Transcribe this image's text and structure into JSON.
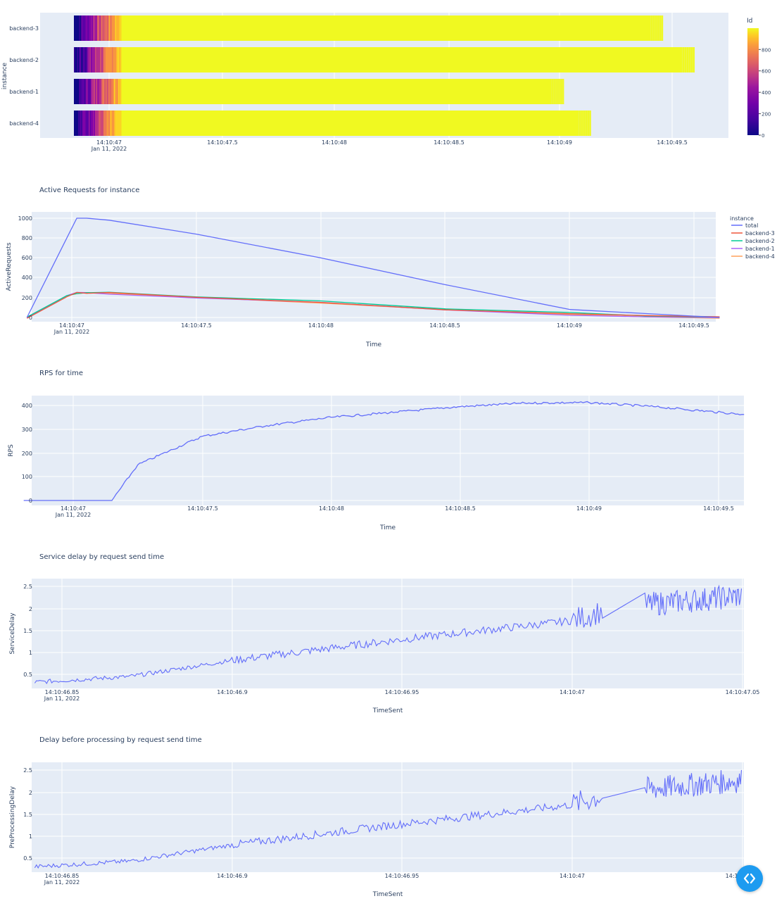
{
  "charts": {
    "timeline": {
      "ylabel": "instance",
      "rows": [
        "backend-3",
        "backend-2",
        "backend-1",
        "backend-4"
      ],
      "bar_start": "14:10:46.84",
      "bar_ends": [
        49.46,
        49.6,
        49.02,
        49.14
      ],
      "x_ticks": [
        {
          "label": "14:10:47",
          "sub": "Jan 11, 2022"
        },
        {
          "label": "14:10:47.5",
          "sub": ""
        },
        {
          "label": "14:10:48",
          "sub": ""
        },
        {
          "label": "14:10:48.5",
          "sub": ""
        },
        {
          "label": "14:10:49",
          "sub": ""
        },
        {
          "label": "14:10:49.5",
          "sub": ""
        }
      ],
      "colorbar": {
        "title": "Id",
        "ticks": [
          "0",
          "200",
          "400",
          "600",
          "800"
        ],
        "range": [
          0,
          999
        ]
      }
    },
    "active": {
      "title": "Active Requests for instance",
      "xlabel": "Time",
      "ylabel": "ActiveRequests",
      "y_ticks": [
        "0",
        "200",
        "400",
        "600",
        "800",
        "1000"
      ],
      "x_ticks": [
        {
          "label": "14:10:47",
          "sub": "Jan 11, 2022"
        },
        {
          "label": "14:10:47.5",
          "sub": ""
        },
        {
          "label": "14:10:48",
          "sub": ""
        },
        {
          "label": "14:10:48.5",
          "sub": ""
        },
        {
          "label": "14:10:49",
          "sub": ""
        },
        {
          "label": "14:10:49.5",
          "sub": ""
        }
      ],
      "legend": {
        "title": "instance",
        "items": [
          {
            "name": "total",
            "color": "#636efa"
          },
          {
            "name": "backend-3",
            "color": "#ef553b"
          },
          {
            "name": "backend-2",
            "color": "#00cc96"
          },
          {
            "name": "backend-1",
            "color": "#ab63fa"
          },
          {
            "name": "backend-4",
            "color": "#ffa15a"
          }
        ]
      }
    },
    "rps": {
      "title": "RPS for time",
      "xlabel": "Time",
      "ylabel": "RPS",
      "y_ticks": [
        "0",
        "100",
        "200",
        "300",
        "400"
      ],
      "x_ticks": [
        {
          "label": "14:10:47",
          "sub": "Jan 11, 2022"
        },
        {
          "label": "14:10:47.5",
          "sub": ""
        },
        {
          "label": "14:10:48",
          "sub": ""
        },
        {
          "label": "14:10:48.5",
          "sub": ""
        },
        {
          "label": "14:10:49",
          "sub": ""
        },
        {
          "label": "14:10:49.5",
          "sub": ""
        }
      ]
    },
    "service": {
      "title": "Service delay by request send time",
      "xlabel": "TimeSent",
      "ylabel": "ServiceDelay",
      "y_ticks": [
        "0.5",
        "1",
        "1.5",
        "2",
        "2.5"
      ],
      "x_ticks": [
        {
          "label": "14:10:46.85",
          "sub": "Jan 11, 2022"
        },
        {
          "label": "14:10:46.9",
          "sub": ""
        },
        {
          "label": "14:10:46.95",
          "sub": ""
        },
        {
          "label": "14:10:47",
          "sub": ""
        },
        {
          "label": "14:10:47.05",
          "sub": ""
        }
      ]
    },
    "preproc": {
      "title": "Delay before processing by request send time",
      "xlabel": "TimeSent",
      "ylabel": "PreProcessingDelay",
      "y_ticks": [
        "0.5",
        "1",
        "1.5",
        "2",
        "2.5"
      ],
      "x_ticks": [
        {
          "label": "14:10:46.85",
          "sub": "Jan 11, 2022"
        },
        {
          "label": "14:10:46.9",
          "sub": ""
        },
        {
          "label": "14:10:46.95",
          "sub": ""
        },
        {
          "label": "14:10:47",
          "sub": ""
        },
        {
          "label": "14:10:47.05",
          "sub": ""
        }
      ]
    }
  },
  "chart_data": [
    {
      "type": "timeline",
      "xlabel": "",
      "ylabel": "instance",
      "categories": [
        "backend-3",
        "backend-2",
        "backend-1",
        "backend-4"
      ],
      "start": [
        "14:10:46.84",
        "14:10:46.84",
        "14:10:46.84",
        "14:10:46.84"
      ],
      "end": [
        "14:10:49.46",
        "14:10:49.60",
        "14:10:49.02",
        "14:10:49.14"
      ],
      "color_by": "Id",
      "color_range": [
        0,
        999
      ]
    },
    {
      "type": "line",
      "title": "Active Requests for instance",
      "xlabel": "Time",
      "ylabel": "ActiveRequests",
      "ylim": [
        0,
        1000
      ],
      "x": [
        "14:10:46.82",
        "14:10:46.98",
        "14:10:47.02",
        "14:10:47.06",
        "14:10:47.15",
        "14:10:47.5",
        "14:10:48",
        "14:10:48.5",
        "14:10:49",
        "14:10:49.3",
        "14:10:49.6"
      ],
      "series": [
        {
          "name": "total",
          "values": [
            0,
            800,
            1000,
            1000,
            980,
            840,
            600,
            330,
            80,
            40,
            0
          ]
        },
        {
          "name": "backend-3",
          "values": [
            0,
            210,
            250,
            250,
            245,
            200,
            150,
            85,
            40,
            10,
            0
          ]
        },
        {
          "name": "backend-2",
          "values": [
            0,
            210,
            250,
            250,
            245,
            205,
            160,
            90,
            45,
            20,
            0
          ]
        },
        {
          "name": "backend-1",
          "values": [
            0,
            210,
            250,
            250,
            245,
            200,
            145,
            80,
            15,
            0,
            0
          ]
        },
        {
          "name": "backend-4",
          "values": [
            0,
            210,
            250,
            250,
            245,
            200,
            150,
            85,
            30,
            5,
            0
          ]
        }
      ]
    },
    {
      "type": "line",
      "title": "RPS for time",
      "xlabel": "Time",
      "ylabel": "RPS",
      "ylim": [
        0,
        420
      ],
      "x": [
        "14:10:46.8",
        "14:10:47.15",
        "14:10:47.25",
        "14:10:47.5",
        "14:10:47.75",
        "14:10:48",
        "14:10:48.25",
        "14:10:48.5",
        "14:10:48.75",
        "14:10:49",
        "14:10:49.25",
        "14:10:49.6"
      ],
      "series": [
        {
          "name": "",
          "values": [
            0,
            0,
            150,
            270,
            315,
            350,
            372,
            395,
            410,
            412,
            395,
            362
          ]
        }
      ]
    },
    {
      "type": "line",
      "title": "Service delay by request send time",
      "xlabel": "TimeSent",
      "ylabel": "ServiceDelay",
      "ylim": [
        0.3,
        2.5
      ],
      "x": [
        "14:10:46.842",
        "14:10:46.87",
        "14:10:46.9",
        "14:10:46.95",
        "14:10:47",
        "14:10:47.009",
        "14:10:47.022",
        "14:10:47.05"
      ],
      "series": [
        {
          "name": "",
          "values": [
            0.32,
            0.45,
            0.82,
            1.3,
            1.73,
            1.95,
            2.1,
            2.3
          ]
        }
      ]
    },
    {
      "type": "line",
      "title": "Delay before processing by request send time",
      "xlabel": "TimeSent",
      "ylabel": "PreProcessingDelay",
      "ylim": [
        0.3,
        2.5
      ],
      "x": [
        "14:10:46.842",
        "14:10:46.87",
        "14:10:46.9",
        "14:10:46.95",
        "14:10:47",
        "14:10:47.009",
        "14:10:47.022",
        "14:10:47.05"
      ],
      "series": [
        {
          "name": "",
          "values": [
            0.3,
            0.43,
            0.8,
            1.28,
            1.72,
            1.93,
            2.08,
            2.28
          ]
        }
      ]
    }
  ]
}
